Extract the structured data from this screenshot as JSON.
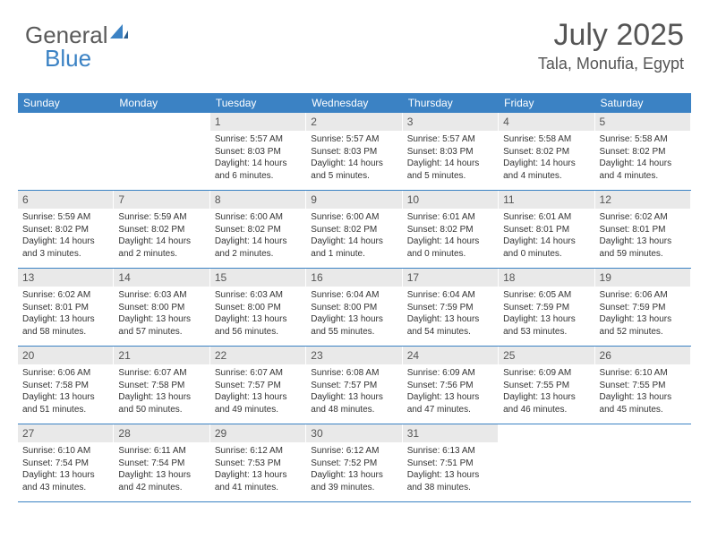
{
  "logo": {
    "textGeneral": "General",
    "textBlue": "Blue"
  },
  "header": {
    "month": "July 2025",
    "location": "Tala, Monufia, Egypt"
  },
  "colors": {
    "headerBar": "#3b82c4",
    "dayNumBg": "#e9e9e9",
    "bodyText": "#333333",
    "titleText": "#555555",
    "logoGray": "#5a5a5a",
    "logoBlue": "#3b82c4",
    "background": "#ffffff"
  },
  "weekdays": [
    "Sunday",
    "Monday",
    "Tuesday",
    "Wednesday",
    "Thursday",
    "Friday",
    "Saturday"
  ],
  "weeks": [
    [
      null,
      null,
      {
        "n": "1",
        "sr": "Sunrise: 5:57 AM",
        "ss": "Sunset: 8:03 PM",
        "dl": "Daylight: 14 hours and 6 minutes."
      },
      {
        "n": "2",
        "sr": "Sunrise: 5:57 AM",
        "ss": "Sunset: 8:03 PM",
        "dl": "Daylight: 14 hours and 5 minutes."
      },
      {
        "n": "3",
        "sr": "Sunrise: 5:57 AM",
        "ss": "Sunset: 8:03 PM",
        "dl": "Daylight: 14 hours and 5 minutes."
      },
      {
        "n": "4",
        "sr": "Sunrise: 5:58 AM",
        "ss": "Sunset: 8:02 PM",
        "dl": "Daylight: 14 hours and 4 minutes."
      },
      {
        "n": "5",
        "sr": "Sunrise: 5:58 AM",
        "ss": "Sunset: 8:02 PM",
        "dl": "Daylight: 14 hours and 4 minutes."
      }
    ],
    [
      {
        "n": "6",
        "sr": "Sunrise: 5:59 AM",
        "ss": "Sunset: 8:02 PM",
        "dl": "Daylight: 14 hours and 3 minutes."
      },
      {
        "n": "7",
        "sr": "Sunrise: 5:59 AM",
        "ss": "Sunset: 8:02 PM",
        "dl": "Daylight: 14 hours and 2 minutes."
      },
      {
        "n": "8",
        "sr": "Sunrise: 6:00 AM",
        "ss": "Sunset: 8:02 PM",
        "dl": "Daylight: 14 hours and 2 minutes."
      },
      {
        "n": "9",
        "sr": "Sunrise: 6:00 AM",
        "ss": "Sunset: 8:02 PM",
        "dl": "Daylight: 14 hours and 1 minute."
      },
      {
        "n": "10",
        "sr": "Sunrise: 6:01 AM",
        "ss": "Sunset: 8:02 PM",
        "dl": "Daylight: 14 hours and 0 minutes."
      },
      {
        "n": "11",
        "sr": "Sunrise: 6:01 AM",
        "ss": "Sunset: 8:01 PM",
        "dl": "Daylight: 14 hours and 0 minutes."
      },
      {
        "n": "12",
        "sr": "Sunrise: 6:02 AM",
        "ss": "Sunset: 8:01 PM",
        "dl": "Daylight: 13 hours and 59 minutes."
      }
    ],
    [
      {
        "n": "13",
        "sr": "Sunrise: 6:02 AM",
        "ss": "Sunset: 8:01 PM",
        "dl": "Daylight: 13 hours and 58 minutes."
      },
      {
        "n": "14",
        "sr": "Sunrise: 6:03 AM",
        "ss": "Sunset: 8:00 PM",
        "dl": "Daylight: 13 hours and 57 minutes."
      },
      {
        "n": "15",
        "sr": "Sunrise: 6:03 AM",
        "ss": "Sunset: 8:00 PM",
        "dl": "Daylight: 13 hours and 56 minutes."
      },
      {
        "n": "16",
        "sr": "Sunrise: 6:04 AM",
        "ss": "Sunset: 8:00 PM",
        "dl": "Daylight: 13 hours and 55 minutes."
      },
      {
        "n": "17",
        "sr": "Sunrise: 6:04 AM",
        "ss": "Sunset: 7:59 PM",
        "dl": "Daylight: 13 hours and 54 minutes."
      },
      {
        "n": "18",
        "sr": "Sunrise: 6:05 AM",
        "ss": "Sunset: 7:59 PM",
        "dl": "Daylight: 13 hours and 53 minutes."
      },
      {
        "n": "19",
        "sr": "Sunrise: 6:06 AM",
        "ss": "Sunset: 7:59 PM",
        "dl": "Daylight: 13 hours and 52 minutes."
      }
    ],
    [
      {
        "n": "20",
        "sr": "Sunrise: 6:06 AM",
        "ss": "Sunset: 7:58 PM",
        "dl": "Daylight: 13 hours and 51 minutes."
      },
      {
        "n": "21",
        "sr": "Sunrise: 6:07 AM",
        "ss": "Sunset: 7:58 PM",
        "dl": "Daylight: 13 hours and 50 minutes."
      },
      {
        "n": "22",
        "sr": "Sunrise: 6:07 AM",
        "ss": "Sunset: 7:57 PM",
        "dl": "Daylight: 13 hours and 49 minutes."
      },
      {
        "n": "23",
        "sr": "Sunrise: 6:08 AM",
        "ss": "Sunset: 7:57 PM",
        "dl": "Daylight: 13 hours and 48 minutes."
      },
      {
        "n": "24",
        "sr": "Sunrise: 6:09 AM",
        "ss": "Sunset: 7:56 PM",
        "dl": "Daylight: 13 hours and 47 minutes."
      },
      {
        "n": "25",
        "sr": "Sunrise: 6:09 AM",
        "ss": "Sunset: 7:55 PM",
        "dl": "Daylight: 13 hours and 46 minutes."
      },
      {
        "n": "26",
        "sr": "Sunrise: 6:10 AM",
        "ss": "Sunset: 7:55 PM",
        "dl": "Daylight: 13 hours and 45 minutes."
      }
    ],
    [
      {
        "n": "27",
        "sr": "Sunrise: 6:10 AM",
        "ss": "Sunset: 7:54 PM",
        "dl": "Daylight: 13 hours and 43 minutes."
      },
      {
        "n": "28",
        "sr": "Sunrise: 6:11 AM",
        "ss": "Sunset: 7:54 PM",
        "dl": "Daylight: 13 hours and 42 minutes."
      },
      {
        "n": "29",
        "sr": "Sunrise: 6:12 AM",
        "ss": "Sunset: 7:53 PM",
        "dl": "Daylight: 13 hours and 41 minutes."
      },
      {
        "n": "30",
        "sr": "Sunrise: 6:12 AM",
        "ss": "Sunset: 7:52 PM",
        "dl": "Daylight: 13 hours and 39 minutes."
      },
      {
        "n": "31",
        "sr": "Sunrise: 6:13 AM",
        "ss": "Sunset: 7:51 PM",
        "dl": "Daylight: 13 hours and 38 minutes."
      },
      null,
      null
    ]
  ]
}
